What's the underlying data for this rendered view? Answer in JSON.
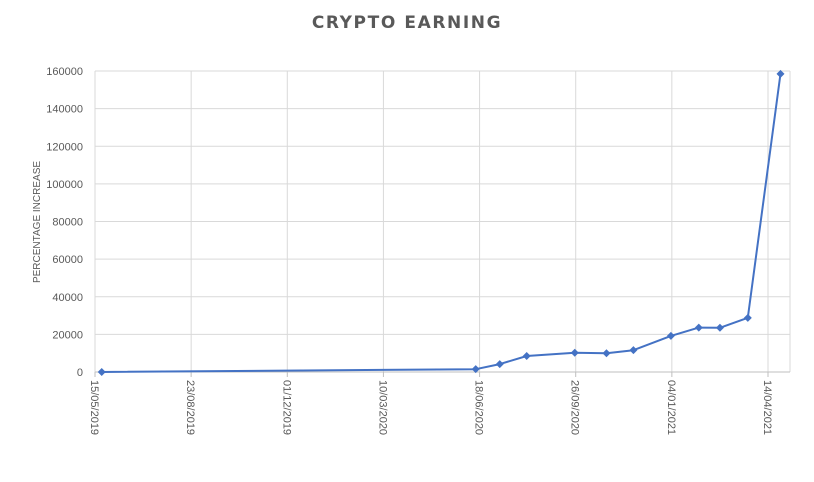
{
  "chart_data": {
    "type": "line",
    "title": "CRYPTO EARNING",
    "xlabel": "",
    "ylabel": "PERCENTAGE INCREASE",
    "x_ticks": [
      "15/05/2019",
      "23/08/2019",
      "01/12/2019",
      "10/03/2020",
      "18/06/2020",
      "26/09/2020",
      "04/01/2021",
      "14/04/2021"
    ],
    "xlim": [
      "15/05/2019",
      "14/04/2021"
    ],
    "ylim": [
      0,
      160000
    ],
    "y_ticks": [
      0,
      20000,
      40000,
      60000,
      80000,
      100000,
      120000,
      140000,
      160000
    ],
    "grid": true,
    "legend": "none",
    "colors": {
      "line": "#4472c4",
      "grid": "#d9d9d9",
      "text": "#595959",
      "axis": "#bfbfbf"
    },
    "series": [
      {
        "marker": "diamond",
        "points": [
          {
            "x": "2019-05-22",
            "y": 0
          },
          {
            "x": "2020-06-14",
            "y": 1500
          },
          {
            "x": "2020-07-09",
            "y": 4200
          },
          {
            "x": "2020-08-06",
            "y": 8500
          },
          {
            "x": "2020-09-25",
            "y": 10200
          },
          {
            "x": "2020-10-28",
            "y": 10000
          },
          {
            "x": "2020-11-25",
            "y": 11600
          },
          {
            "x": "2021-01-03",
            "y": 19200
          },
          {
            "x": "2021-02-01",
            "y": 23600
          },
          {
            "x": "2021-02-23",
            "y": 23500
          },
          {
            "x": "2021-03-24",
            "y": 28800
          },
          {
            "x": "2021-04-27",
            "y": 158500
          }
        ]
      }
    ]
  }
}
